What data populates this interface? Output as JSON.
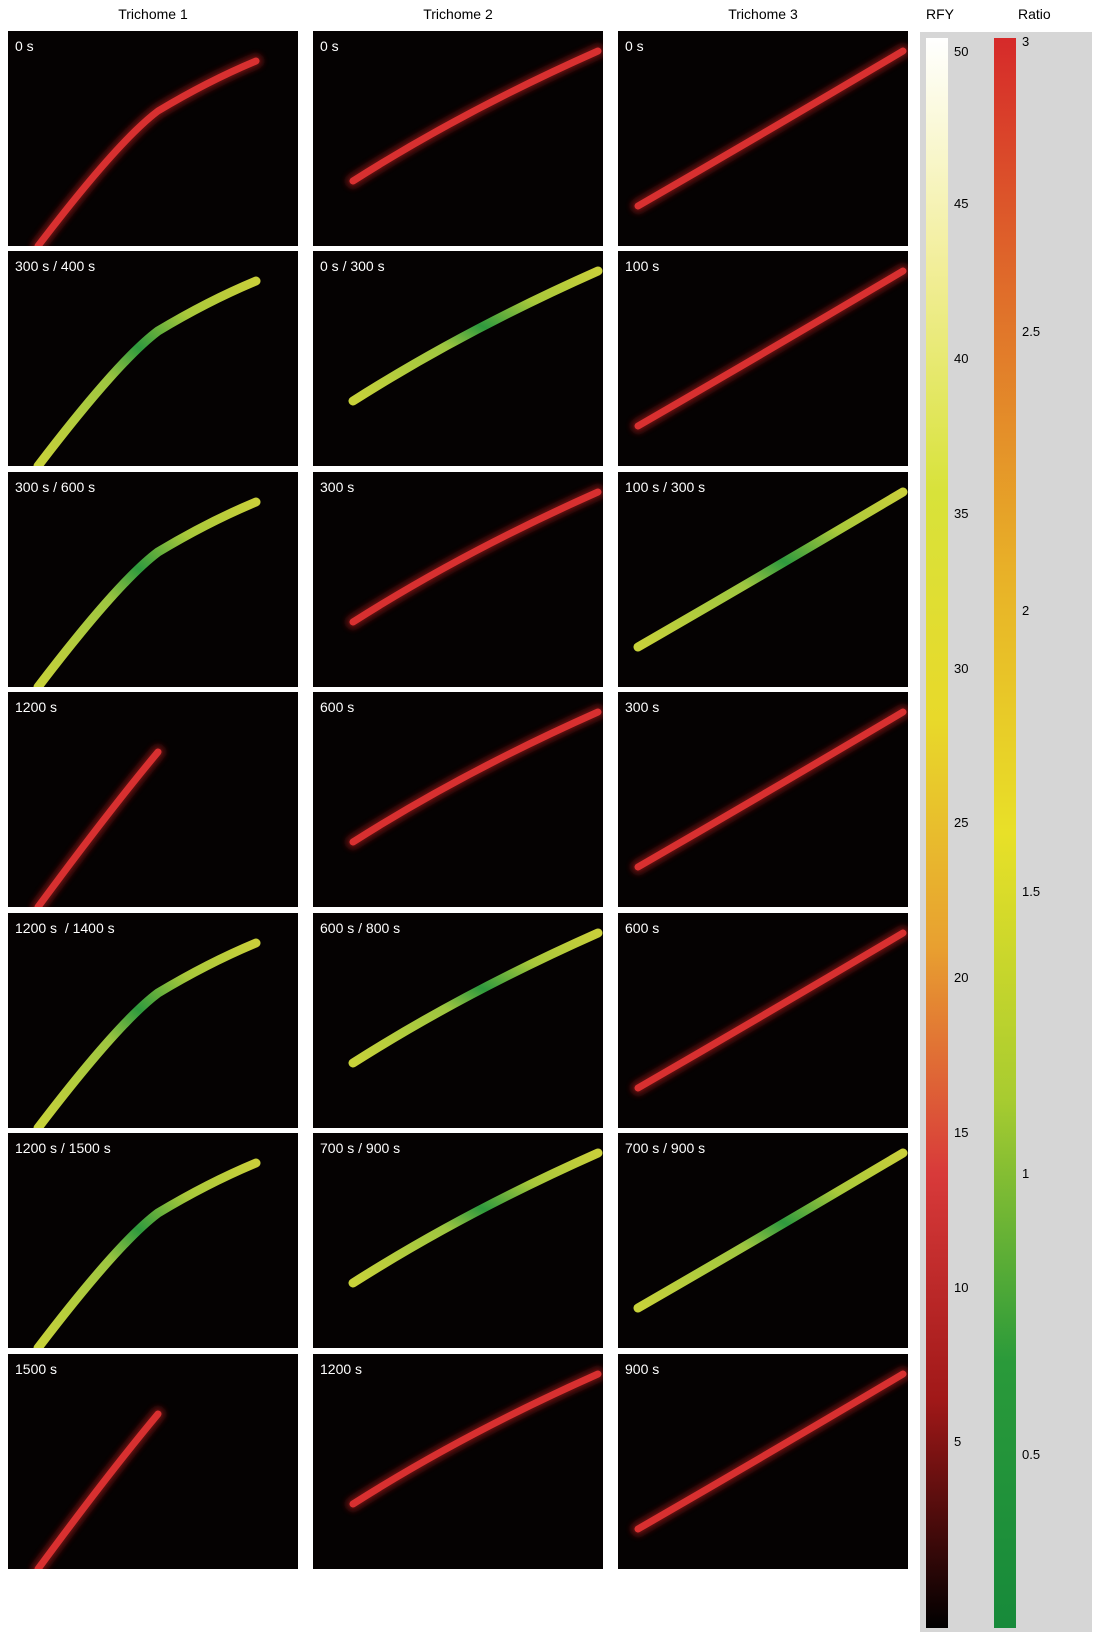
{
  "columns": [
    "Trichome 1",
    "Trichome 2",
    "Trichome 3"
  ],
  "panels": [
    [
      "0 s",
      "0 s",
      "0 s"
    ],
    [
      "300 s / 400 s",
      "0 s / 300 s",
      "100 s"
    ],
    [
      "300 s / 600 s",
      "300 s",
      "100 s / 300 s"
    ],
    [
      "1200 s",
      "600 s",
      "300 s"
    ],
    [
      "1200 s  / 1400 s",
      "600 s / 800 s",
      "600 s"
    ],
    [
      "1200 s / 1500 s",
      "700 s / 900 s",
      "700 s / 900 s"
    ],
    [
      "1500 s",
      "1200 s",
      "900 s"
    ]
  ],
  "rfy_bar": {
    "title": "RFY",
    "ticks": [
      "50",
      "45",
      "40",
      "35",
      "30",
      "25",
      "20",
      "15",
      "10",
      "5"
    ],
    "colors": [
      "#ffffff",
      "#f2ee9a",
      "#d8e23a",
      "#e8d92a",
      "#e8a030",
      "#d83a3a",
      "#a01818",
      "#000000"
    ]
  },
  "ratio_bar": {
    "title": "Ratio",
    "ticks": [
      "3",
      "2.5",
      "2",
      "1.5",
      "1",
      "0.5"
    ],
    "colors": [
      "#d62a2a",
      "#e0702a",
      "#e8b028",
      "#e8e028",
      "#a8cc30",
      "#2a9a3a",
      "#178a3a"
    ]
  }
}
